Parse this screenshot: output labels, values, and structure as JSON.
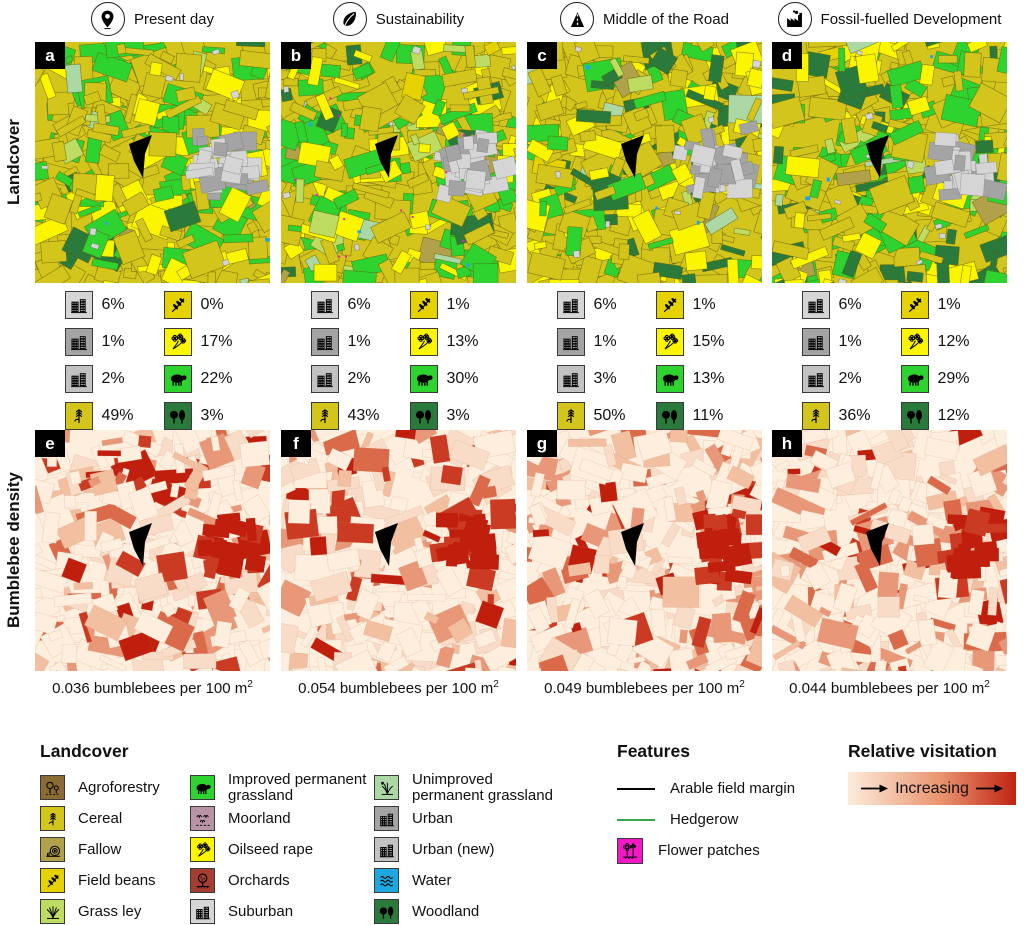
{
  "row_labels": {
    "landcover": "Landcover",
    "density": "Bumblebee density"
  },
  "colors": {
    "agroforestry": "#8a6b33",
    "cereal": "#d4c51d",
    "fallow": "#b1a14a",
    "field_beans": "#e6d200",
    "grass_ley": "#bedc62",
    "improved_grassland": "#2fd32f",
    "moorland": "#b894a6",
    "oilseed_rape": "#fcf500",
    "orchards": "#a63d31",
    "suburban": "#d5d5d5",
    "unimproved_grassland": "#abd8a4",
    "urban": "#a4a4a4",
    "urban_new": "#c2c2c2",
    "water": "#1fa8e0",
    "woodland": "#2a7b3b",
    "flower_patches": "#f218c4",
    "hedgerow": "#3aa64c",
    "margin": "#000000"
  },
  "scenarios": [
    {
      "label": "Present day",
      "icon": "pin-icon",
      "landcover_letter": "a",
      "density_letter": "e",
      "stats": [
        {
          "key": "suburban",
          "icon": "buildings-icon",
          "value": "6%"
        },
        {
          "key": "urban",
          "icon": "buildings-icon",
          "value": "1%"
        },
        {
          "key": "urban_new",
          "icon": "buildings-icon",
          "value": "2%"
        },
        {
          "key": "cereal",
          "icon": "wheat-icon",
          "value": "49%"
        },
        {
          "key": "field_beans",
          "icon": "beans-icon",
          "value": "0%"
        },
        {
          "key": "oilseed_rape",
          "icon": "rape-flowers-icon",
          "value": "17%"
        },
        {
          "key": "improved_grassland",
          "icon": "sheep-icon",
          "value": "22%"
        },
        {
          "key": "woodland",
          "icon": "trees-icon",
          "value": "3%"
        }
      ],
      "density_caption": "0.036 bumblebees per 100 m",
      "density_caption_sup": "2",
      "has_flower_patches": false
    },
    {
      "label": "Sustainability",
      "icon": "leaf-icon",
      "landcover_letter": "b",
      "density_letter": "f",
      "stats": [
        {
          "key": "suburban",
          "icon": "buildings-icon",
          "value": "6%"
        },
        {
          "key": "urban",
          "icon": "buildings-icon",
          "value": "1%"
        },
        {
          "key": "urban_new",
          "icon": "buildings-icon",
          "value": "2%"
        },
        {
          "key": "cereal",
          "icon": "wheat-icon",
          "value": "43%"
        },
        {
          "key": "field_beans",
          "icon": "beans-icon",
          "value": "1%"
        },
        {
          "key": "oilseed_rape",
          "icon": "rape-flowers-icon",
          "value": "13%"
        },
        {
          "key": "improved_grassland",
          "icon": "sheep-icon",
          "value": "30%"
        },
        {
          "key": "woodland",
          "icon": "trees-icon",
          "value": "3%"
        }
      ],
      "density_caption": "0.054 bumblebees per 100 m",
      "density_caption_sup": "2",
      "has_flower_patches": true
    },
    {
      "label": "Middle of the Road",
      "icon": "road-icon",
      "landcover_letter": "c",
      "density_letter": "g",
      "stats": [
        {
          "key": "suburban",
          "icon": "buildings-icon",
          "value": "6%"
        },
        {
          "key": "urban",
          "icon": "buildings-icon",
          "value": "1%"
        },
        {
          "key": "urban_new",
          "icon": "buildings-icon",
          "value": "3%"
        },
        {
          "key": "cereal",
          "icon": "wheat-icon",
          "value": "50%"
        },
        {
          "key": "field_beans",
          "icon": "beans-icon",
          "value": "1%"
        },
        {
          "key": "oilseed_rape",
          "icon": "rape-flowers-icon",
          "value": "15%"
        },
        {
          "key": "improved_grassland",
          "icon": "sheep-icon",
          "value": "13%"
        },
        {
          "key": "woodland",
          "icon": "trees-icon",
          "value": "11%"
        }
      ],
      "density_caption": "0.049 bumblebees per 100 m",
      "density_caption_sup": "2",
      "has_flower_patches": false
    },
    {
      "label": "Fossil-fuelled Development",
      "icon": "factory-icon",
      "landcover_letter": "d",
      "density_letter": "h",
      "stats": [
        {
          "key": "suburban",
          "icon": "buildings-icon",
          "value": "6%"
        },
        {
          "key": "urban",
          "icon": "buildings-icon",
          "value": "1%"
        },
        {
          "key": "urban_new",
          "icon": "buildings-icon",
          "value": "2%"
        },
        {
          "key": "cereal",
          "icon": "wheat-icon",
          "value": "36%"
        },
        {
          "key": "field_beans",
          "icon": "beans-icon",
          "value": "1%"
        },
        {
          "key": "oilseed_rape",
          "icon": "rape-flowers-icon",
          "value": "12%"
        },
        {
          "key": "improved_grassland",
          "icon": "sheep-icon",
          "value": "29%"
        },
        {
          "key": "woodland",
          "icon": "trees-icon",
          "value": "12%"
        }
      ],
      "density_caption": "0.044 bumblebees per 100 m",
      "density_caption_sup": "2",
      "has_flower_patches": false
    }
  ],
  "legend": {
    "landcover": {
      "title": "Landcover",
      "columns": [
        [
          {
            "key": "agroforestry",
            "icon": "agroforestry-tree-icon",
            "label": "Agroforestry"
          },
          {
            "key": "cereal",
            "icon": "wheat-icon",
            "label": "Cereal"
          },
          {
            "key": "fallow",
            "icon": "bale-icon",
            "label": "Fallow"
          },
          {
            "key": "field_beans",
            "icon": "beans-icon",
            "label": "Field beans"
          },
          {
            "key": "grass_ley",
            "icon": "grass-icon",
            "label": "Grass ley"
          }
        ],
        [
          {
            "key": "improved_grassland",
            "icon": "sheep-icon",
            "label": "Improved permanent\ngrassland"
          },
          {
            "key": "moorland",
            "icon": "moor-icon",
            "label": "Moorland"
          },
          {
            "key": "oilseed_rape",
            "icon": "rape-flowers-icon",
            "label": "Oilseed rape"
          },
          {
            "key": "orchards",
            "icon": "orchard-tree-icon",
            "label": "Orchards"
          },
          {
            "key": "suburban",
            "icon": "buildings-icon",
            "label": "Suburban"
          }
        ],
        [
          {
            "key": "unimproved_grassland",
            "icon": "grass-flower-icon",
            "label": "Unimproved\npermanent grassland"
          },
          {
            "key": "urban",
            "icon": "buildings-icon",
            "label": "Urban"
          },
          {
            "key": "urban_new",
            "icon": "buildings-icon",
            "label": "Urban (new)"
          },
          {
            "key": "water",
            "icon": "water-waves-icon",
            "label": "Water"
          },
          {
            "key": "woodland",
            "icon": "trees-icon",
            "label": "Woodland"
          }
        ]
      ]
    },
    "features": {
      "title": "Features",
      "items": [
        {
          "type": "line",
          "color_key": "margin",
          "label": "Arable field margin"
        },
        {
          "type": "line",
          "color_key": "hedgerow",
          "label": "Hedgerow"
        },
        {
          "type": "swatch",
          "key": "flower_patches",
          "icon": "flower-icon",
          "label": "Flower patches"
        }
      ]
    },
    "visitation": {
      "title": "Relative visitation",
      "label": "Increasing",
      "gradient_low": "#fcecdb",
      "gradient_mid": "#e9946f",
      "gradient_high": "#bf2412"
    }
  }
}
